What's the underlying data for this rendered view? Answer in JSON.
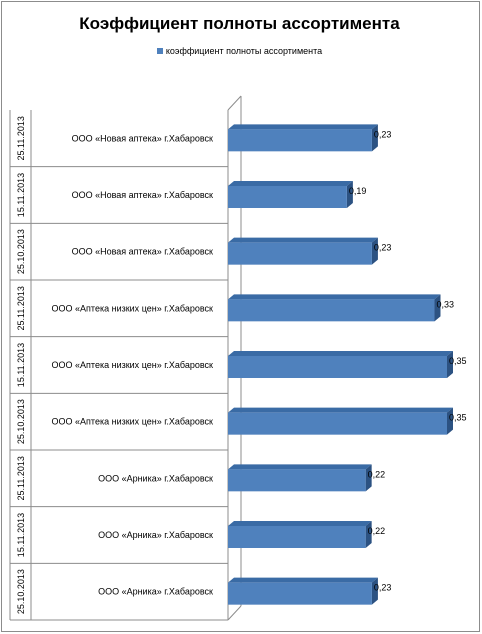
{
  "chart_data": {
    "type": "bar",
    "orientation": "horizontal",
    "three_d": true,
    "title": "Коэффициент полноты ассортимента",
    "legend_position": "top",
    "colors": {
      "bar_front": "#4f81bd",
      "bar_top": "#3a6ba5",
      "bar_side": "#2c5282",
      "axis": "#8c8c8c"
    },
    "categories": [
      {
        "date": "25.11.2013",
        "store": "ООО «Новая аптека» г.Хабаровск"
      },
      {
        "date": "15.11.2013",
        "store": "ООО «Новая аптека» г.Хабаровск"
      },
      {
        "date": "25.10.2013",
        "store": "ООО «Новая аптека» г.Хабаровск"
      },
      {
        "date": "25.11.2013",
        "store": "ООО «Аптека низких цен» г.Хабаровск"
      },
      {
        "date": "15.11.2013",
        "store": "ООО «Аптека низких цен» г.Хабаровск"
      },
      {
        "date": "25.10.2013",
        "store": "ООО «Аптека низких цен» г.Хабаровск"
      },
      {
        "date": "25.11.2013",
        "store": "ООО «Арника» г.Хабаровск"
      },
      {
        "date": "15.11.2013",
        "store": "ООО «Арника» г.Хабаровск"
      },
      {
        "date": "25.10.2013",
        "store": "ООО «Арника» г.Хабаровск"
      }
    ],
    "series": [
      {
        "name": "коэффициент полноты ассортимента",
        "values": [
          0.23,
          0.19,
          0.23,
          0.33,
          0.35,
          0.35,
          0.22,
          0.22,
          0.23
        ],
        "labels": [
          "0,23",
          "0,19",
          "0,23",
          "0,33",
          "0,35",
          "0,35",
          "0,22",
          "0,22",
          "0,23"
        ]
      }
    ],
    "xlim": [
      0,
      0.38
    ]
  }
}
